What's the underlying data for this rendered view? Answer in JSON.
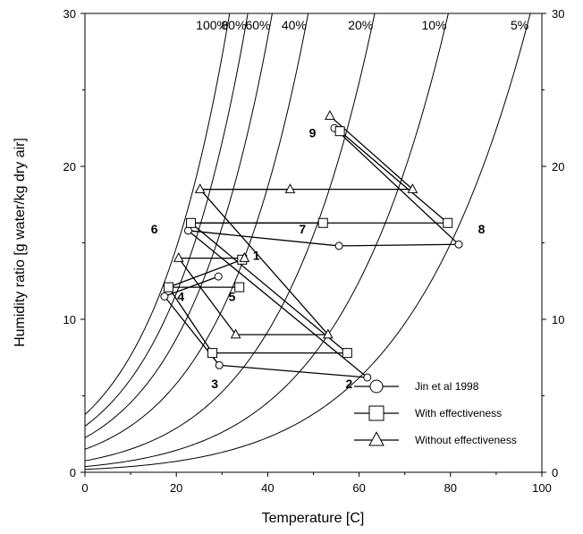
{
  "chart_data": {
    "type": "scatter",
    "title": "",
    "xlabel": "Temperature [C]",
    "ylabel": "Humidity ratio [g water/kg dry air]",
    "xlim": [
      0,
      100
    ],
    "ylim": [
      0,
      30
    ],
    "x_ticks": [
      "0",
      "20",
      "40",
      "60",
      "80",
      "100"
    ],
    "y_ticks": [
      "0",
      "10",
      "20",
      "30"
    ],
    "y_ticks_right": [
      "0",
      "10",
      "20",
      "30"
    ],
    "grid": false,
    "legend_position": "bottom-right",
    "rh_curves": [
      {
        "label": "100%",
        "rh": 1.0
      },
      {
        "label": "80%",
        "rh": 0.8
      },
      {
        "label": "60%",
        "rh": 0.6
      },
      {
        "label": "40%",
        "rh": 0.4
      },
      {
        "label": "20%",
        "rh": 0.2
      },
      {
        "label": "10%",
        "rh": 0.1
      },
      {
        "label": "5%",
        "rh": 0.05
      }
    ],
    "series": [
      {
        "name": "Jin et al 1998",
        "marker": "circle",
        "points": [
          {
            "x": 54.6,
            "y": 22.5
          },
          {
            "x": 81.8,
            "y": 14.9
          },
          {
            "x": 55.6,
            "y": 14.8
          },
          {
            "x": 22.6,
            "y": 15.8
          },
          {
            "x": 61.8,
            "y": 6.2
          },
          {
            "x": 29.4,
            "y": 7.0
          },
          {
            "x": 17.4,
            "y": 11.5
          },
          {
            "x": 29.2,
            "y": 12.8
          }
        ]
      },
      {
        "name": "With effectiveness",
        "marker": "square",
        "points": [
          {
            "x": 55.8,
            "y": 22.3
          },
          {
            "x": 79.4,
            "y": 16.3
          },
          {
            "x": 52.1,
            "y": 16.3
          },
          {
            "x": 23.2,
            "y": 16.3
          },
          {
            "x": 57.4,
            "y": 7.8
          },
          {
            "x": 27.9,
            "y": 7.8
          },
          {
            "x": 18.3,
            "y": 12.1
          },
          {
            "x": 33.8,
            "y": 12.1
          },
          {
            "x": 34.4,
            "y": 13.9
          }
        ]
      },
      {
        "name": "Without effectiveness",
        "marker": "triangle",
        "points": [
          {
            "x": 53.6,
            "y": 23.3
          },
          {
            "x": 71.7,
            "y": 18.5
          },
          {
            "x": 44.9,
            "y": 18.5
          },
          {
            "x": 25.2,
            "y": 18.5
          },
          {
            "x": 53.2,
            "y": 9.0
          },
          {
            "x": 33.0,
            "y": 9.0
          },
          {
            "x": 20.5,
            "y": 14.0
          },
          {
            "x": 34.9,
            "y": 14.0
          }
        ]
      }
    ],
    "connections": [
      {
        "series": 0,
        "pairs": [
          [
            0,
            1
          ],
          [
            1,
            2
          ],
          [
            2,
            3
          ],
          [
            3,
            4
          ],
          [
            4,
            5
          ],
          [
            5,
            6
          ],
          [
            6,
            7
          ]
        ]
      },
      {
        "series": 1,
        "pairs": [
          [
            0,
            1
          ],
          [
            2,
            3
          ],
          [
            1,
            3
          ],
          [
            3,
            4
          ],
          [
            4,
            5
          ],
          [
            5,
            6
          ],
          [
            6,
            7
          ],
          [
            8,
            6
          ]
        ]
      },
      {
        "series": 2,
        "pairs": [
          [
            0,
            1
          ],
          [
            2,
            3
          ],
          [
            1,
            3
          ],
          [
            3,
            4
          ],
          [
            4,
            5
          ],
          [
            5,
            6
          ],
          [
            6,
            7
          ]
        ]
      }
    ],
    "point_labels": [
      {
        "text": "1",
        "x": 37.5,
        "y": 13.9
      },
      {
        "text": "2",
        "x": 57.8,
        "y": 5.5
      },
      {
        "text": "3",
        "x": 28.4,
        "y": 5.5
      },
      {
        "text": "4",
        "x": 21.0,
        "y": 11.2
      },
      {
        "text": "5",
        "x": 32.2,
        "y": 11.2
      },
      {
        "text": "6",
        "x": 15.2,
        "y": 15.6
      },
      {
        "text": "7",
        "x": 47.6,
        "y": 15.6
      },
      {
        "text": "8",
        "x": 86.8,
        "y": 15.6
      },
      {
        "text": "9",
        "x": 49.8,
        "y": 21.9
      }
    ]
  }
}
